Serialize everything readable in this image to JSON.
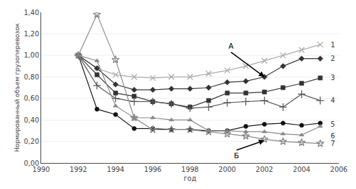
{
  "chart_data": {
    "type": "line",
    "xlabel": "год",
    "ylabel": "Нормированный объем грузоперевозок",
    "xlim": [
      1990,
      2006
    ],
    "ylim": [
      0.0,
      1.4
    ],
    "xticks": [
      1990,
      1992,
      1994,
      1996,
      1998,
      2000,
      2002,
      2004,
      2006
    ],
    "yticks": [
      {
        "value": 0.0,
        "label": "0,00"
      },
      {
        "value": 0.2,
        "label": "0,20"
      },
      {
        "value": 0.4,
        "label": "0,40"
      },
      {
        "value": 0.6,
        "label": "0,60"
      },
      {
        "value": 0.8,
        "label": "0,80"
      },
      {
        "value": 1.0,
        "label": "1,00"
      },
      {
        "value": 1.2,
        "label": "1,20"
      },
      {
        "value": 1.4,
        "label": "1,40"
      }
    ],
    "grid": "y",
    "x": [
      1992,
      1993,
      1994,
      1995,
      1996,
      1997,
      1998,
      1999,
      2000,
      2001,
      2002,
      2003,
      2004,
      2005
    ],
    "series": [
      {
        "name": "1",
        "color": "#aaaaaa",
        "marker": "x-open",
        "values": [
          1.0,
          0.88,
          0.82,
          0.8,
          0.79,
          0.8,
          0.8,
          0.83,
          0.86,
          0.9,
          0.95,
          1.0,
          1.05,
          1.1
        ]
      },
      {
        "name": "2",
        "color": "#333333",
        "marker": "diamond",
        "values": [
          1.0,
          0.88,
          0.73,
          0.68,
          0.68,
          0.69,
          0.69,
          0.7,
          0.75,
          0.76,
          0.8,
          0.9,
          0.97,
          0.97
        ]
      },
      {
        "name": "3",
        "color": "#333333",
        "marker": "square",
        "values": [
          1.0,
          0.82,
          0.65,
          0.62,
          0.57,
          0.55,
          0.52,
          0.58,
          0.65,
          0.65,
          0.66,
          0.7,
          0.74,
          0.79
        ]
      },
      {
        "name": "4",
        "color": "#555555",
        "marker": "plus-open",
        "values": [
          1.0,
          0.72,
          0.6,
          0.57,
          0.57,
          0.55,
          0.51,
          0.52,
          0.56,
          0.57,
          0.58,
          0.52,
          0.64,
          0.58
        ]
      },
      {
        "name": "5",
        "color": "#111111",
        "marker": "circle",
        "values": [
          1.0,
          0.5,
          0.45,
          0.32,
          0.32,
          0.31,
          0.31,
          0.3,
          0.3,
          0.34,
          0.36,
          0.37,
          0.35,
          0.37
        ]
      },
      {
        "name": "6",
        "color": "#888888",
        "marker": "triangle-up",
        "values": [
          1.0,
          0.95,
          0.53,
          0.42,
          0.42,
          0.4,
          0.4,
          0.3,
          0.3,
          0.29,
          0.29,
          0.27,
          0.26,
          0.34
        ]
      },
      {
        "name": "7",
        "color": "#888888",
        "marker": "star-open",
        "values": [
          1.0,
          1.38,
          0.96,
          0.42,
          0.31,
          0.31,
          0.31,
          0.29,
          0.27,
          0.25,
          0.22,
          0.2,
          0.19,
          0.18
        ]
      }
    ],
    "annotations": [
      {
        "text": "1",
        "x": 2005.5,
        "y": 1.1
      },
      {
        "text": "2",
        "x": 2005.5,
        "y": 0.97
      },
      {
        "text": "3",
        "x": 2005.5,
        "y": 0.79
      },
      {
        "text": "4",
        "x": 2005.5,
        "y": 0.58
      },
      {
        "text": "5",
        "x": 2005.5,
        "y": 0.36
      },
      {
        "text": "6",
        "x": 2005.5,
        "y": 0.25
      },
      {
        "text": "7",
        "x": 2005.5,
        "y": 0.18
      },
      {
        "text": "А",
        "x": 2002.0,
        "y": 0.8,
        "text_x": 2000.2,
        "text_y": 1.03
      },
      {
        "text": "Б",
        "x": 2002.0,
        "y": 0.21,
        "text_x": 2000.5,
        "text_y": 0.12
      }
    ]
  }
}
